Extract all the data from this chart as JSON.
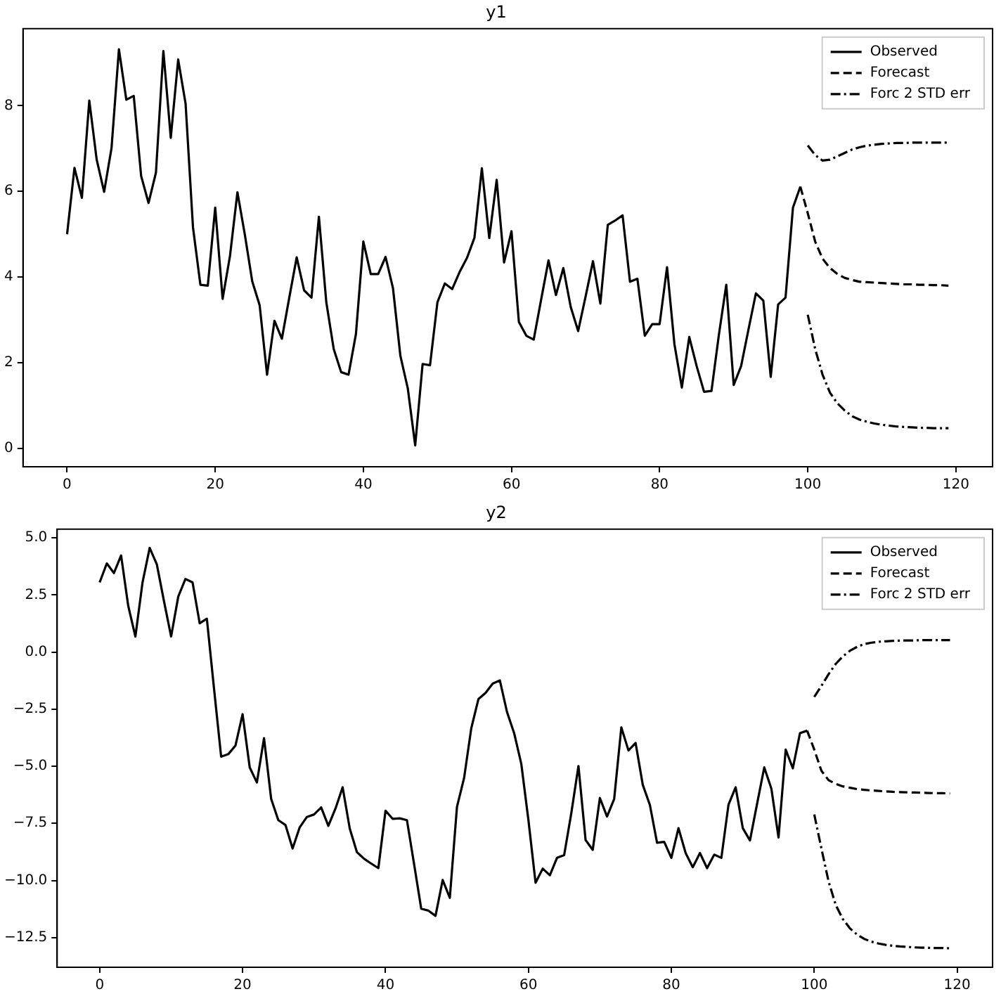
{
  "chart_data": [
    {
      "type": "line",
      "title": "y1",
      "legend": "top right",
      "marker": "none",
      "x": [
        0,
        1,
        2,
        3,
        4,
        5,
        6,
        7,
        8,
        9,
        10,
        11,
        12,
        13,
        14,
        15,
        16,
        17,
        18,
        19,
        20,
        21,
        22,
        23,
        24,
        25,
        26,
        27,
        28,
        29,
        30,
        31,
        32,
        33,
        34,
        35,
        36,
        37,
        38,
        39,
        40,
        41,
        42,
        43,
        44,
        45,
        46,
        47,
        48,
        49,
        50,
        51,
        52,
        53,
        54,
        55,
        56,
        57,
        58,
        59,
        60,
        61,
        62,
        63,
        64,
        65,
        66,
        67,
        68,
        69,
        70,
        71,
        72,
        73,
        74,
        75,
        76,
        77,
        78,
        79,
        80,
        81,
        82,
        83,
        84,
        85,
        86,
        87,
        88,
        89,
        90,
        91,
        92,
        93,
        94,
        95,
        96,
        97,
        98,
        99
      ],
      "xlim": [
        -5.95,
        124.95
      ],
      "xticks": [
        0,
        20,
        40,
        60,
        80,
        100,
        120
      ],
      "ylim": [
        -0.43,
        9.8
      ],
      "yticks": [
        0,
        2,
        4,
        6,
        8
      ],
      "series": [
        {
          "name": "Observed",
          "color": "#000000",
          "line_style": "solid",
          "values": [
            5.0,
            6.55,
            5.85,
            8.12,
            6.74,
            5.99,
            7.01,
            9.32,
            8.14,
            8.23,
            6.36,
            5.73,
            6.44,
            9.28,
            7.25,
            9.08,
            8.05,
            5.16,
            3.82,
            3.8,
            5.62,
            3.49,
            4.5,
            5.98,
            4.99,
            3.9,
            3.34,
            1.72,
            2.98,
            2.56,
            3.52,
            4.46,
            3.69,
            3.52,
            5.41,
            3.41,
            2.32,
            1.78,
            1.72,
            2.67,
            4.83,
            4.07,
            4.07,
            4.47,
            3.74,
            2.16,
            1.4,
            0.07,
            1.97,
            1.94,
            3.41,
            3.85,
            3.72,
            4.12,
            4.45,
            4.92,
            6.54,
            4.91,
            6.27,
            4.34,
            5.07,
            2.95,
            2.63,
            2.54,
            3.47,
            4.39,
            3.58,
            4.21,
            3.3,
            2.74,
            3.54,
            4.37,
            3.38,
            5.22,
            5.32,
            5.44,
            3.89,
            3.96,
            2.63,
            2.9,
            2.9,
            4.23,
            2.43,
            1.42,
            2.6,
            1.92,
            1.32,
            1.34,
            2.65,
            3.82,
            1.48,
            1.92,
            2.78,
            3.62,
            3.45,
            1.67,
            3.36,
            3.52,
            5.62,
            6.11
          ]
        },
        {
          "name": "Forecast",
          "color": "#000000",
          "line_style": "dashed",
          "x": [
            99,
            100,
            101,
            102,
            103,
            104,
            105,
            106,
            107,
            108,
            109,
            110,
            111,
            112,
            113,
            114,
            115,
            116,
            117,
            118,
            119
          ],
          "values": [
            6.11,
            5.49,
            4.83,
            4.43,
            4.21,
            4.07,
            3.98,
            3.93,
            3.89,
            3.88,
            3.87,
            3.86,
            3.85,
            3.84,
            3.83,
            3.83,
            3.82,
            3.82,
            3.81,
            3.81,
            3.8
          ]
        },
        {
          "name": "Forc 2 STD err",
          "color": "#000000",
          "line_style": "dashdot",
          "x": [
            100,
            101,
            102,
            103,
            104,
            105,
            106,
            107,
            108,
            109,
            110,
            111,
            112,
            113,
            114,
            115,
            116,
            117,
            118,
            119
          ],
          "values": [
            7.07,
            6.85,
            6.72,
            6.74,
            6.82,
            6.9,
            6.98,
            7.03,
            7.07,
            7.09,
            7.11,
            7.12,
            7.13,
            7.13,
            7.14,
            7.14,
            7.14,
            7.14,
            7.14,
            7.14
          ]
        },
        {
          "color": "#000000",
          "line_style": "dashdot",
          "x": [
            100,
            101,
            102,
            103,
            104,
            105,
            106,
            107,
            108,
            109,
            110,
            111,
            112,
            113,
            114,
            115,
            116,
            117,
            118,
            119
          ],
          "values": [
            3.12,
            2.32,
            1.72,
            1.3,
            1.05,
            0.88,
            0.75,
            0.67,
            0.62,
            0.58,
            0.55,
            0.53,
            0.51,
            0.5,
            0.49,
            0.48,
            0.48,
            0.47,
            0.47,
            0.47
          ]
        }
      ]
    },
    {
      "type": "line",
      "title": "y2",
      "legend": "top right",
      "marker": "none",
      "x": [
        0,
        1,
        2,
        3,
        4,
        5,
        6,
        7,
        8,
        9,
        10,
        11,
        12,
        13,
        14,
        15,
        16,
        17,
        18,
        19,
        20,
        21,
        22,
        23,
        24,
        25,
        26,
        27,
        28,
        29,
        30,
        31,
        32,
        33,
        34,
        35,
        36,
        37,
        38,
        39,
        40,
        41,
        42,
        43,
        44,
        45,
        46,
        47,
        48,
        49,
        50,
        51,
        52,
        53,
        54,
        55,
        56,
        57,
        58,
        59,
        60,
        61,
        62,
        63,
        64,
        65,
        66,
        67,
        68,
        69,
        70,
        71,
        72,
        73,
        74,
        75,
        76,
        77,
        78,
        79,
        80,
        81,
        82,
        83,
        84,
        85,
        86,
        87,
        88,
        89,
        90,
        91,
        92,
        93,
        94,
        95,
        96,
        97,
        98,
        99
      ],
      "xlim": [
        -5.95,
        124.95
      ],
      "xticks": [
        0,
        20,
        40,
        60,
        80,
        100,
        120
      ],
      "ylim": [
        -13.8,
        5.38
      ],
      "yticks": [
        {
          "value": -12.5,
          "label": "−12.5"
        },
        {
          "value": -10,
          "label": "−10.0"
        },
        {
          "value": -7.5,
          "label": "−7.5"
        },
        {
          "value": -5,
          "label": "−5.0"
        },
        {
          "value": -2.5,
          "label": "−2.5"
        },
        {
          "value": 0,
          "label": "0.0"
        },
        {
          "value": 2.5,
          "label": "2.5"
        },
        {
          "value": 5,
          "label": "5.0"
        }
      ],
      "series": [
        {
          "name": "Observed",
          "color": "#000000",
          "line_style": "solid",
          "values": [
            3.05,
            3.88,
            3.46,
            4.23,
            2.02,
            0.68,
            3.05,
            4.56,
            3.84,
            2.23,
            0.68,
            2.43,
            3.2,
            3.05,
            1.26,
            1.46,
            -1.59,
            -4.58,
            -4.47,
            -4.1,
            -2.72,
            -5.05,
            -5.71,
            -3.77,
            -6.43,
            -7.36,
            -7.57,
            -8.6,
            -7.67,
            -7.22,
            -7.11,
            -6.8,
            -7.61,
            -6.85,
            -5.92,
            -7.73,
            -8.76,
            -9.05,
            -9.26,
            -9.46,
            -6.95,
            -7.3,
            -7.28,
            -7.36,
            -9.28,
            -11.24,
            -11.32,
            -11.55,
            -9.98,
            -10.76,
            -6.78,
            -5.51,
            -3.34,
            -2.06,
            -1.79,
            -1.38,
            -1.24,
            -2.62,
            -3.55,
            -4.89,
            -7.36,
            -10.1,
            -9.48,
            -9.77,
            -9.01,
            -8.89,
            -7.05,
            -4.99,
            -8.23,
            -8.66,
            -6.39,
            -7.2,
            -6.43,
            -3.3,
            -4.31,
            -3.98,
            -5.81,
            -6.7,
            -8.35,
            -8.31,
            -9.01,
            -7.71,
            -8.8,
            -9.42,
            -8.8,
            -9.46,
            -8.87,
            -9.01,
            -6.68,
            -5.92,
            -7.71,
            -8.25,
            -6.64,
            -5.05,
            -5.98,
            -8.12,
            -4.27,
            -5.09,
            -3.55,
            -3.44
          ]
        },
        {
          "name": "Forecast",
          "color": "#000000",
          "line_style": "dashed",
          "x": [
            99,
            100,
            101,
            102,
            103,
            104,
            105,
            106,
            107,
            108,
            109,
            110,
            111,
            112,
            113,
            114,
            115,
            116,
            117,
            118,
            119
          ],
          "values": [
            -3.44,
            -4.27,
            -5.2,
            -5.61,
            -5.77,
            -5.88,
            -5.94,
            -6.0,
            -6.03,
            -6.06,
            -6.08,
            -6.1,
            -6.12,
            -6.13,
            -6.14,
            -6.15,
            -6.16,
            -6.17,
            -6.18,
            -6.18,
            -6.19
          ]
        },
        {
          "name": "Forc 2 STD err",
          "color": "#000000",
          "line_style": "dashdot",
          "x": [
            100,
            101,
            102,
            103,
            104,
            105,
            106,
            107,
            108,
            109,
            110,
            111,
            112,
            113,
            114,
            115,
            116,
            117,
            118,
            119
          ],
          "values": [
            -1.96,
            -1.48,
            -0.97,
            -0.52,
            -0.19,
            0.06,
            0.23,
            0.35,
            0.41,
            0.45,
            0.47,
            0.49,
            0.5,
            0.51,
            0.51,
            0.52,
            0.52,
            0.52,
            0.52,
            0.52
          ]
        },
        {
          "color": "#000000",
          "line_style": "dashdot",
          "x": [
            100,
            101,
            102,
            103,
            104,
            105,
            106,
            107,
            108,
            109,
            110,
            111,
            112,
            113,
            114,
            115,
            116,
            117,
            118,
            119
          ],
          "values": [
            -7.11,
            -8.6,
            -10.04,
            -11.07,
            -11.69,
            -12.1,
            -12.37,
            -12.56,
            -12.68,
            -12.76,
            -12.82,
            -12.86,
            -12.89,
            -12.91,
            -12.93,
            -12.94,
            -12.95,
            -12.96,
            -12.96,
            -12.97
          ]
        }
      ]
    }
  ]
}
